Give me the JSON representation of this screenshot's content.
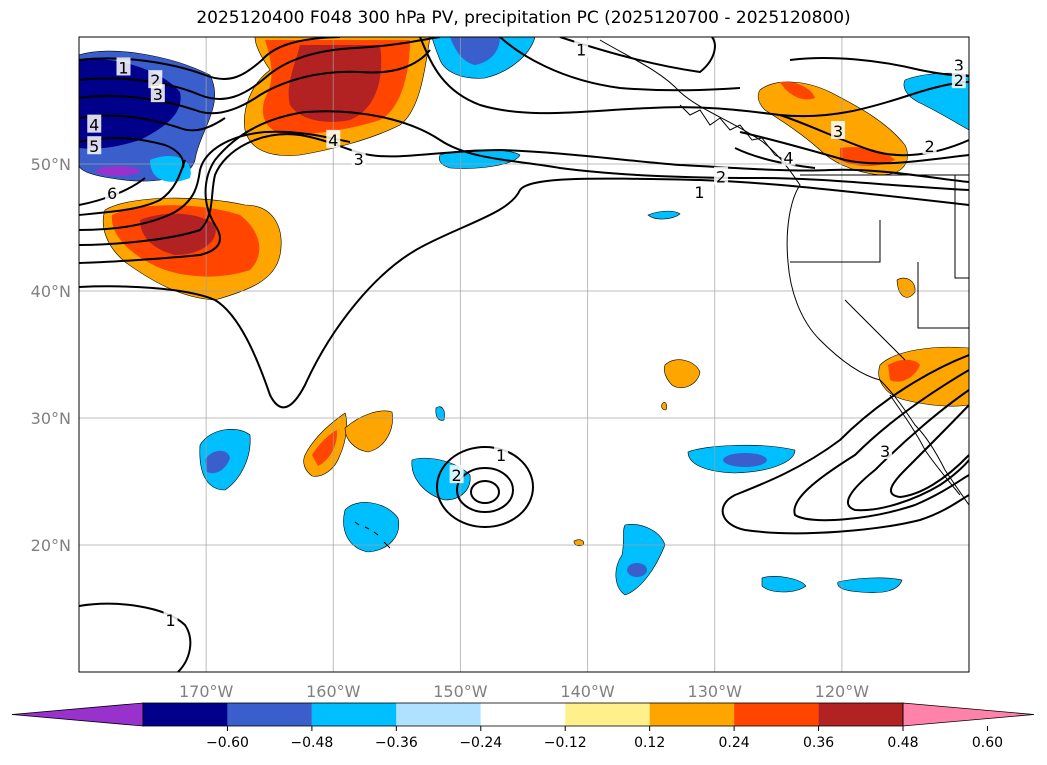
{
  "title": "2025120400 F048 300 hPa PV, precipitation PC (2025120700 - 2025120800)",
  "map": {
    "lon_range": [
      -180,
      -110
    ],
    "lat_range": [
      10,
      60
    ],
    "lat_ticks": [
      {
        "value": 50,
        "label": "50°N"
      },
      {
        "value": 40,
        "label": "40°N"
      },
      {
        "value": 30,
        "label": "30°N"
      },
      {
        "value": 20,
        "label": "20°N"
      }
    ],
    "lon_ticks": [
      {
        "value": -170,
        "label": "170°W"
      },
      {
        "value": -160,
        "label": "160°W"
      },
      {
        "value": -150,
        "label": "150°W"
      },
      {
        "value": -140,
        "label": "140°W"
      },
      {
        "value": -130,
        "label": "130°W"
      },
      {
        "value": -120,
        "label": "120°W"
      }
    ],
    "grid": true
  },
  "pv_contour_labels": [
    {
      "text": "1",
      "lon": -176.5,
      "lat": 57.6
    },
    {
      "text": "2",
      "lon": -174.0,
      "lat": 56.6
    },
    {
      "text": "3",
      "lon": -173.8,
      "lat": 55.5
    },
    {
      "text": "4",
      "lon": -178.8,
      "lat": 53.1
    },
    {
      "text": "5",
      "lon": -178.8,
      "lat": 51.4
    },
    {
      "text": "6",
      "lon": -177.4,
      "lat": 47.7
    },
    {
      "text": "4",
      "lon": -160.0,
      "lat": 51.9
    },
    {
      "text": "3",
      "lon": -158.0,
      "lat": 50.4
    },
    {
      "text": "1",
      "lon": -140.5,
      "lat": 59.0
    },
    {
      "text": "2",
      "lon": -129.5,
      "lat": 49.0
    },
    {
      "text": "1",
      "lon": -131.2,
      "lat": 47.8
    },
    {
      "text": "4",
      "lon": -124.2,
      "lat": 50.5
    },
    {
      "text": "3",
      "lon": -120.3,
      "lat": 52.6
    },
    {
      "text": "2",
      "lon": -113.1,
      "lat": 51.4
    },
    {
      "text": "3",
      "lon": -110.8,
      "lat": 57.8
    },
    {
      "text": "2",
      "lon": -110.8,
      "lat": 56.6
    },
    {
      "text": "1",
      "lon": -146.8,
      "lat": 27.1
    },
    {
      "text": "2",
      "lon": -150.3,
      "lat": 25.5
    },
    {
      "text": "3",
      "lon": -116.6,
      "lat": 27.4
    },
    {
      "text": "1",
      "lon": -172.8,
      "lat": 14.1
    }
  ],
  "colorbar": {
    "ticks": [
      "−0.60",
      "−0.48",
      "−0.36",
      "−0.24",
      "−0.12",
      "0.12",
      "0.24",
      "0.36",
      "0.48",
      "0.60"
    ],
    "colors": [
      "#9932cc",
      "#00008b",
      "#3a5fcd",
      "#00bfff",
      "#b0e2ff",
      "#ffffff",
      "#fff08c",
      "#ffa500",
      "#ff4500",
      "#b22222",
      "#ff82ab"
    ]
  }
}
